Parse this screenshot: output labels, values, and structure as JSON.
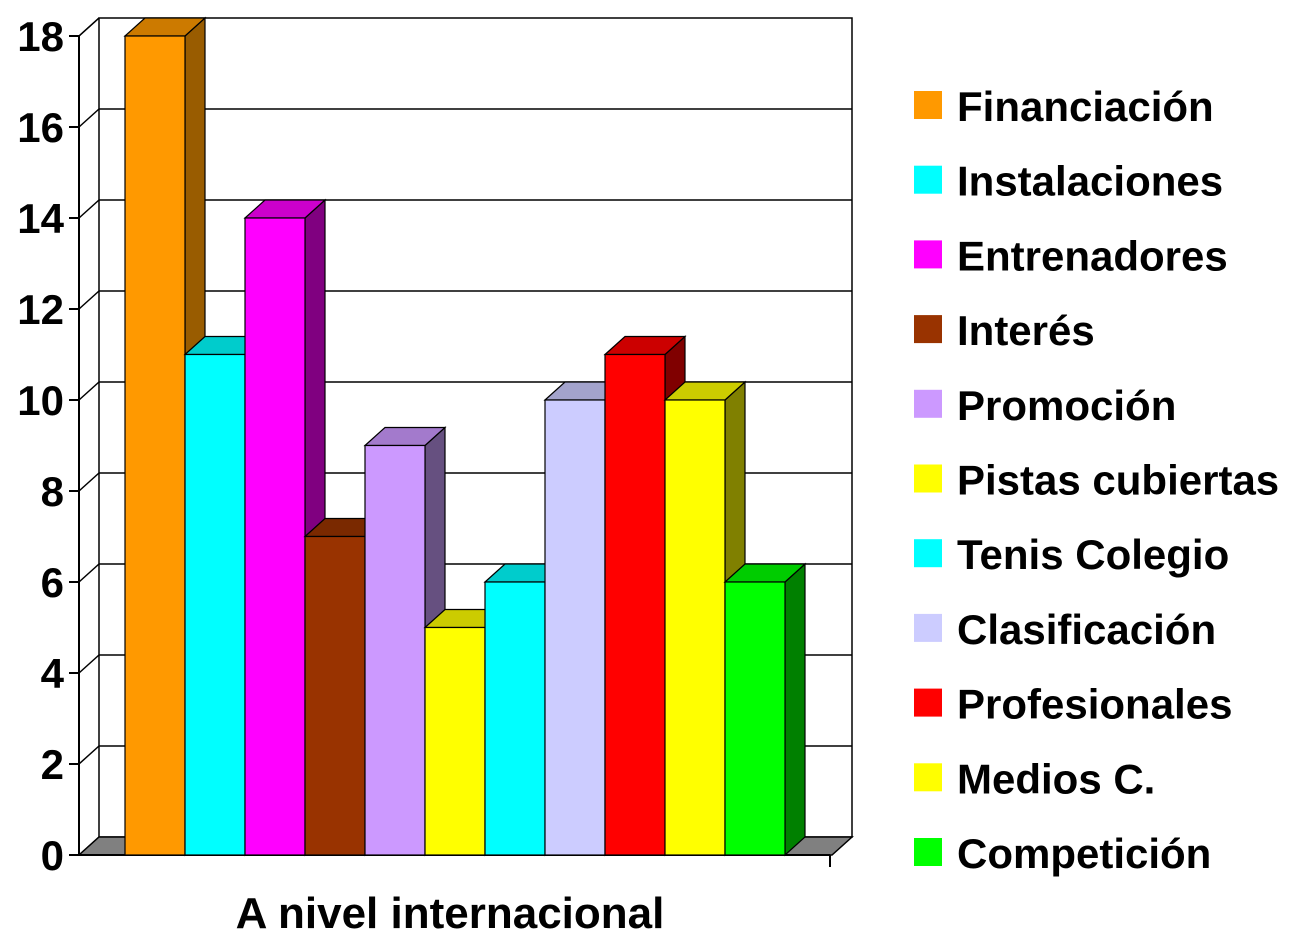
{
  "chart_data": {
    "type": "bar",
    "categories": [
      "A nivel internacional"
    ],
    "series": [
      {
        "name": "Financiación",
        "values": [
          18
        ],
        "color": "#FF9900",
        "side": "#995C00",
        "top": "#CC7A00"
      },
      {
        "name": "Instalaciones",
        "values": [
          11
        ],
        "color": "#00FFFF",
        "side": "#009999",
        "top": "#00CCCC"
      },
      {
        "name": "Entrenadores",
        "values": [
          14
        ],
        "color": "#FF00FF",
        "side": "#800080",
        "top": "#CC00CC"
      },
      {
        "name": "Interés",
        "values": [
          7
        ],
        "color": "#993300",
        "side": "#5C1F00",
        "top": "#7A2900"
      },
      {
        "name": "Promoción",
        "values": [
          9
        ],
        "color": "#CC99FF",
        "side": "#665080",
        "top": "#A37ACC"
      },
      {
        "name": "Pistas cubiertas",
        "values": [
          5
        ],
        "color": "#FFFF00",
        "side": "#808000",
        "top": "#CCCC00"
      },
      {
        "name": "Tenis Colegio",
        "values": [
          6
        ],
        "color": "#00FFFF",
        "side": "#009999",
        "top": "#00CCCC"
      },
      {
        "name": "Clasificación",
        "values": [
          10
        ],
        "color": "#CCCCFF",
        "side": "#7A7A99",
        "top": "#A3A3CC"
      },
      {
        "name": "Profesionales",
        "values": [
          11
        ],
        "color": "#FF0000",
        "side": "#800000",
        "top": "#CC0000"
      },
      {
        "name": "Medios C.",
        "values": [
          10
        ],
        "color": "#FFFF00",
        "side": "#808000",
        "top": "#CCCC00"
      },
      {
        "name": "Competición",
        "values": [
          6
        ],
        "color": "#00FF00",
        "side": "#008000",
        "top": "#00CC00"
      }
    ],
    "ylim": [
      0,
      18
    ],
    "yticks": [
      "0",
      "2",
      "4",
      "6",
      "8",
      "10",
      "12",
      "14",
      "16",
      "18"
    ],
    "grid": true,
    "legend": "right",
    "floor_color": "#808080"
  }
}
